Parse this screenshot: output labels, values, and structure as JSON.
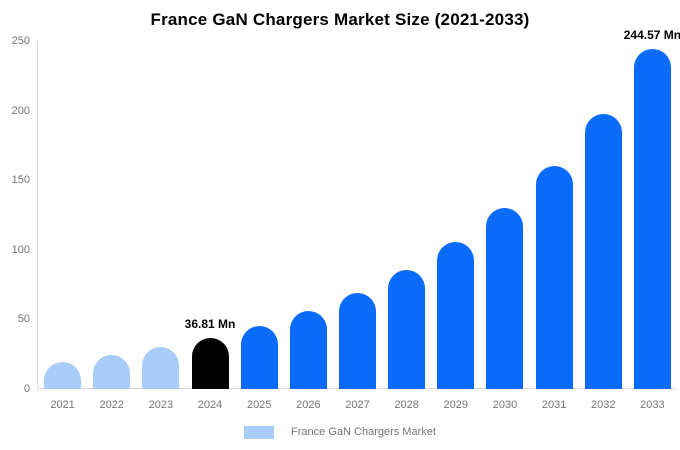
{
  "chart_data": {
    "type": "bar",
    "title": "France GaN Chargers Market Size (2021-2033)",
    "xlabel": "",
    "ylabel": "",
    "unit": "Mn",
    "categories": [
      "2021",
      "2022",
      "2023",
      "2024",
      "2025",
      "2026",
      "2027",
      "2028",
      "2029",
      "2030",
      "2031",
      "2032",
      "2033"
    ],
    "values": [
      19.59,
      24.18,
      29.83,
      36.81,
      45.42,
      56.04,
      69.15,
      85.32,
      105.28,
      129.9,
      160.28,
      197.77,
      244.57
    ],
    "bar_colors": [
      "#a9cdf8",
      "#a9cdf8",
      "#a9cdf8",
      "#000000",
      "#0b6bfb",
      "#0b6bfb",
      "#0b6bfb",
      "#0b6bfb",
      "#0b6bfb",
      "#0b6bfb",
      "#0b6bfb",
      "#0b6bfb",
      "#0b6bfb"
    ],
    "ylim": [
      0,
      250
    ],
    "yticks": [
      0,
      50,
      100,
      150,
      200,
      250
    ],
    "grid": false,
    "annotations": [
      {
        "category": "2024",
        "text": "36.81 Mn"
      },
      {
        "category": "2033",
        "text": "244.57 Mn"
      }
    ],
    "legend": {
      "label": "France GaN Chargers Market",
      "swatch_color": "#a9cdf8",
      "position": "bottom"
    }
  },
  "colors": {
    "background": "#ffffff",
    "axis_line": "#d9d9d9",
    "tick_text": "#757575",
    "title_text": "#000000",
    "annotation_text": "#000000"
  }
}
